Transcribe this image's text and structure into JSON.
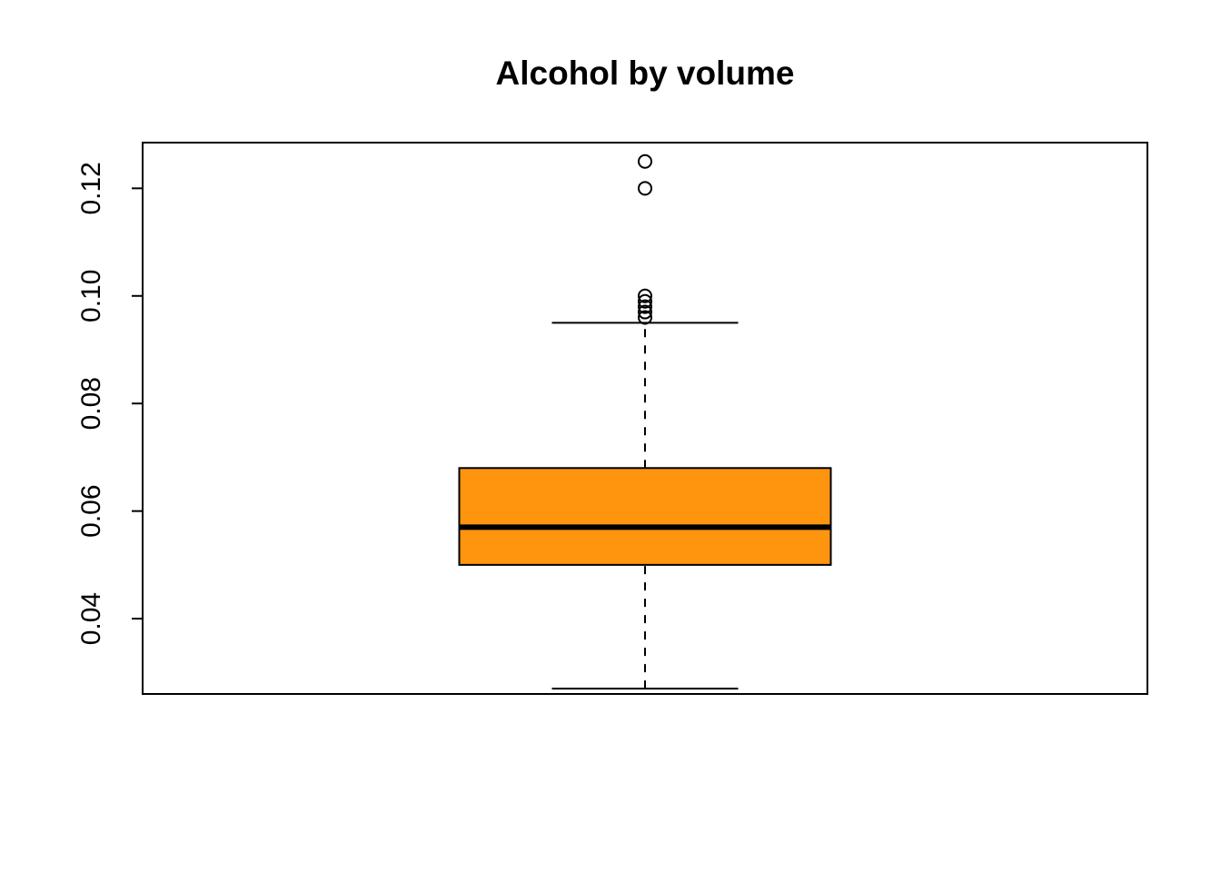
{
  "chart_data": {
    "type": "boxplot",
    "title": "Alcohol by volume",
    "xlabel": "",
    "ylabel": "",
    "ylim": [
      0.026,
      0.1285
    ],
    "y_ticks": [
      0.04,
      0.06,
      0.08,
      0.1,
      0.12
    ],
    "y_tick_labels": [
      "0.04",
      "0.06",
      "0.08",
      "0.10",
      "0.12"
    ],
    "grid": false,
    "box": {
      "whisker_low": 0.027,
      "q1": 0.05,
      "median": 0.057,
      "q3": 0.068,
      "whisker_high": 0.095
    },
    "outliers": [
      0.096,
      0.097,
      0.098,
      0.099,
      0.1,
      0.12,
      0.125
    ],
    "colors": {
      "box_fill": "#FF950E",
      "stroke": "#000000"
    }
  }
}
